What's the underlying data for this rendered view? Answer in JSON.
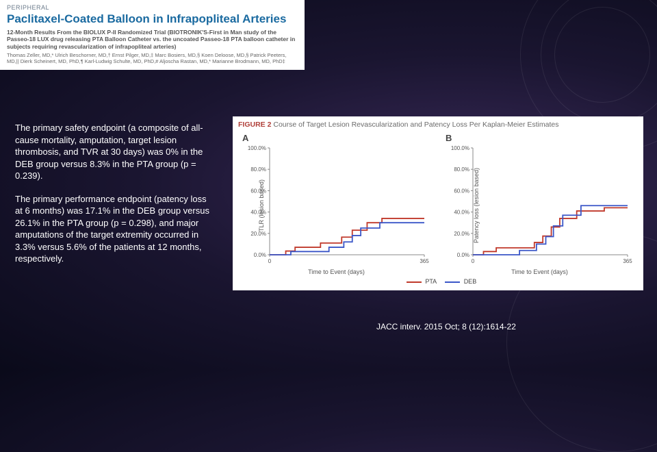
{
  "header": {
    "section_label": "PERIPHERAL",
    "title": "Paclitaxel-Coated Balloon in Infrapopliteal Arteries",
    "subtitle": "12-Month Results From the BIOLUX P-II Randomized Trial (BIOTRONIK'S-First in Man study of the Passeo-18 LUX drug releasing PTA Balloon Catheter vs. the uncoated Passeo-18 PTA balloon catheter in subjects requiring revascularization of infrapopliteal arteries)",
    "authors": "Thomas Zeller, MD,* Ulrich Beschorner, MD,† Ernst Pilger, MD,‡ Marc Bosiers, MD,§ Koen Deloose, MD,§ Patrick Peeters, MD,|| Dierk Scheinert, MD, PhD,¶ Karl-Ludwig Schulte, MD, PhD,# Aljoscha Rastan, MD,* Marianne Brodmann, MD, PhD‡"
  },
  "body": {
    "para1": "The primary safety endpoint (a composite of all-cause mortality, amputation, target lesion thrombosis, and TVR at 30 days) was 0% in the DEB group versus 8.3% in the PTA group (p = 0.239).",
    "para2": "The primary performance endpoint (patency loss at 6 months) was 17.1% in the DEB group versus 26.1% in the PTA group (p = 0.298), and major amputations of the target extremity occurred in 3.3% versus 5.6% of the patients at 12 months, respectively."
  },
  "figure": {
    "label": "FIGURE 2",
    "caption": "Course of Target Lesion Revascularization and Patency Loss Per Kaplan-Meier Estimates",
    "xlabel": "Time to Event (days)",
    "xlim": [
      0,
      365
    ],
    "ylim": [
      0,
      1.0
    ],
    "yticks": [
      0.0,
      0.2,
      0.4,
      0.6,
      0.8,
      1.0
    ],
    "ytick_labels": [
      "0.0%",
      "20.0%",
      "40.0%",
      "60.0%",
      "80.0%",
      "100.0%"
    ],
    "xtick_labels": [
      "0",
      "365"
    ],
    "legend": [
      {
        "label": "PTA",
        "color": "#c0392b"
      },
      {
        "label": "DEB",
        "color": "#3a56c8"
      }
    ],
    "axis_color": "#888888",
    "tick_fontsize": 8,
    "label_fontsize": 9,
    "line_width": 1.8,
    "panelA": {
      "letter": "A",
      "ylabel": "TLR (lesion based)",
      "series": {
        "PTA": {
          "color": "#c0392b",
          "points": [
            [
              0,
              0
            ],
            [
              38,
              0
            ],
            [
              38,
              0.035
            ],
            [
              60,
              0.035
            ],
            [
              60,
              0.07
            ],
            [
              120,
              0.07
            ],
            [
              120,
              0.11
            ],
            [
              170,
              0.11
            ],
            [
              170,
              0.165
            ],
            [
              195,
              0.165
            ],
            [
              195,
              0.23
            ],
            [
              230,
              0.23
            ],
            [
              230,
              0.3
            ],
            [
              265,
              0.3
            ],
            [
              265,
              0.34
            ],
            [
              365,
              0.34
            ]
          ]
        },
        "DEB": {
          "color": "#3a56c8",
          "points": [
            [
              0,
              0
            ],
            [
              50,
              0
            ],
            [
              50,
              0.03
            ],
            [
              140,
              0.03
            ],
            [
              140,
              0.07
            ],
            [
              175,
              0.07
            ],
            [
              175,
              0.12
            ],
            [
              195,
              0.12
            ],
            [
              195,
              0.18
            ],
            [
              215,
              0.18
            ],
            [
              215,
              0.25
            ],
            [
              260,
              0.25
            ],
            [
              260,
              0.3
            ],
            [
              310,
              0.3
            ],
            [
              365,
              0.3
            ]
          ]
        }
      }
    },
    "panelB": {
      "letter": "B",
      "ylabel": "Patency loss (lesion based)",
      "series": {
        "PTA": {
          "color": "#c0392b",
          "points": [
            [
              0,
              0
            ],
            [
              25,
              0
            ],
            [
              25,
              0.03
            ],
            [
              55,
              0.03
            ],
            [
              55,
              0.065
            ],
            [
              145,
              0.065
            ],
            [
              145,
              0.115
            ],
            [
              165,
              0.115
            ],
            [
              165,
              0.175
            ],
            [
              185,
              0.175
            ],
            [
              185,
              0.26
            ],
            [
              205,
              0.26
            ],
            [
              205,
              0.34
            ],
            [
              245,
              0.34
            ],
            [
              245,
              0.41
            ],
            [
              310,
              0.41
            ],
            [
              310,
              0.44
            ],
            [
              365,
              0.44
            ]
          ]
        },
        "DEB": {
          "color": "#3a56c8",
          "points": [
            [
              0,
              0
            ],
            [
              110,
              0
            ],
            [
              110,
              0.04
            ],
            [
              150,
              0.04
            ],
            [
              150,
              0.1
            ],
            [
              172,
              0.1
            ],
            [
              172,
              0.17
            ],
            [
              190,
              0.17
            ],
            [
              190,
              0.27
            ],
            [
              212,
              0.27
            ],
            [
              212,
              0.37
            ],
            [
              255,
              0.37
            ],
            [
              255,
              0.46
            ],
            [
              365,
              0.46
            ]
          ]
        }
      }
    }
  },
  "citation": "JACC interv. 2015 Oct; 8 (12):1614-22"
}
